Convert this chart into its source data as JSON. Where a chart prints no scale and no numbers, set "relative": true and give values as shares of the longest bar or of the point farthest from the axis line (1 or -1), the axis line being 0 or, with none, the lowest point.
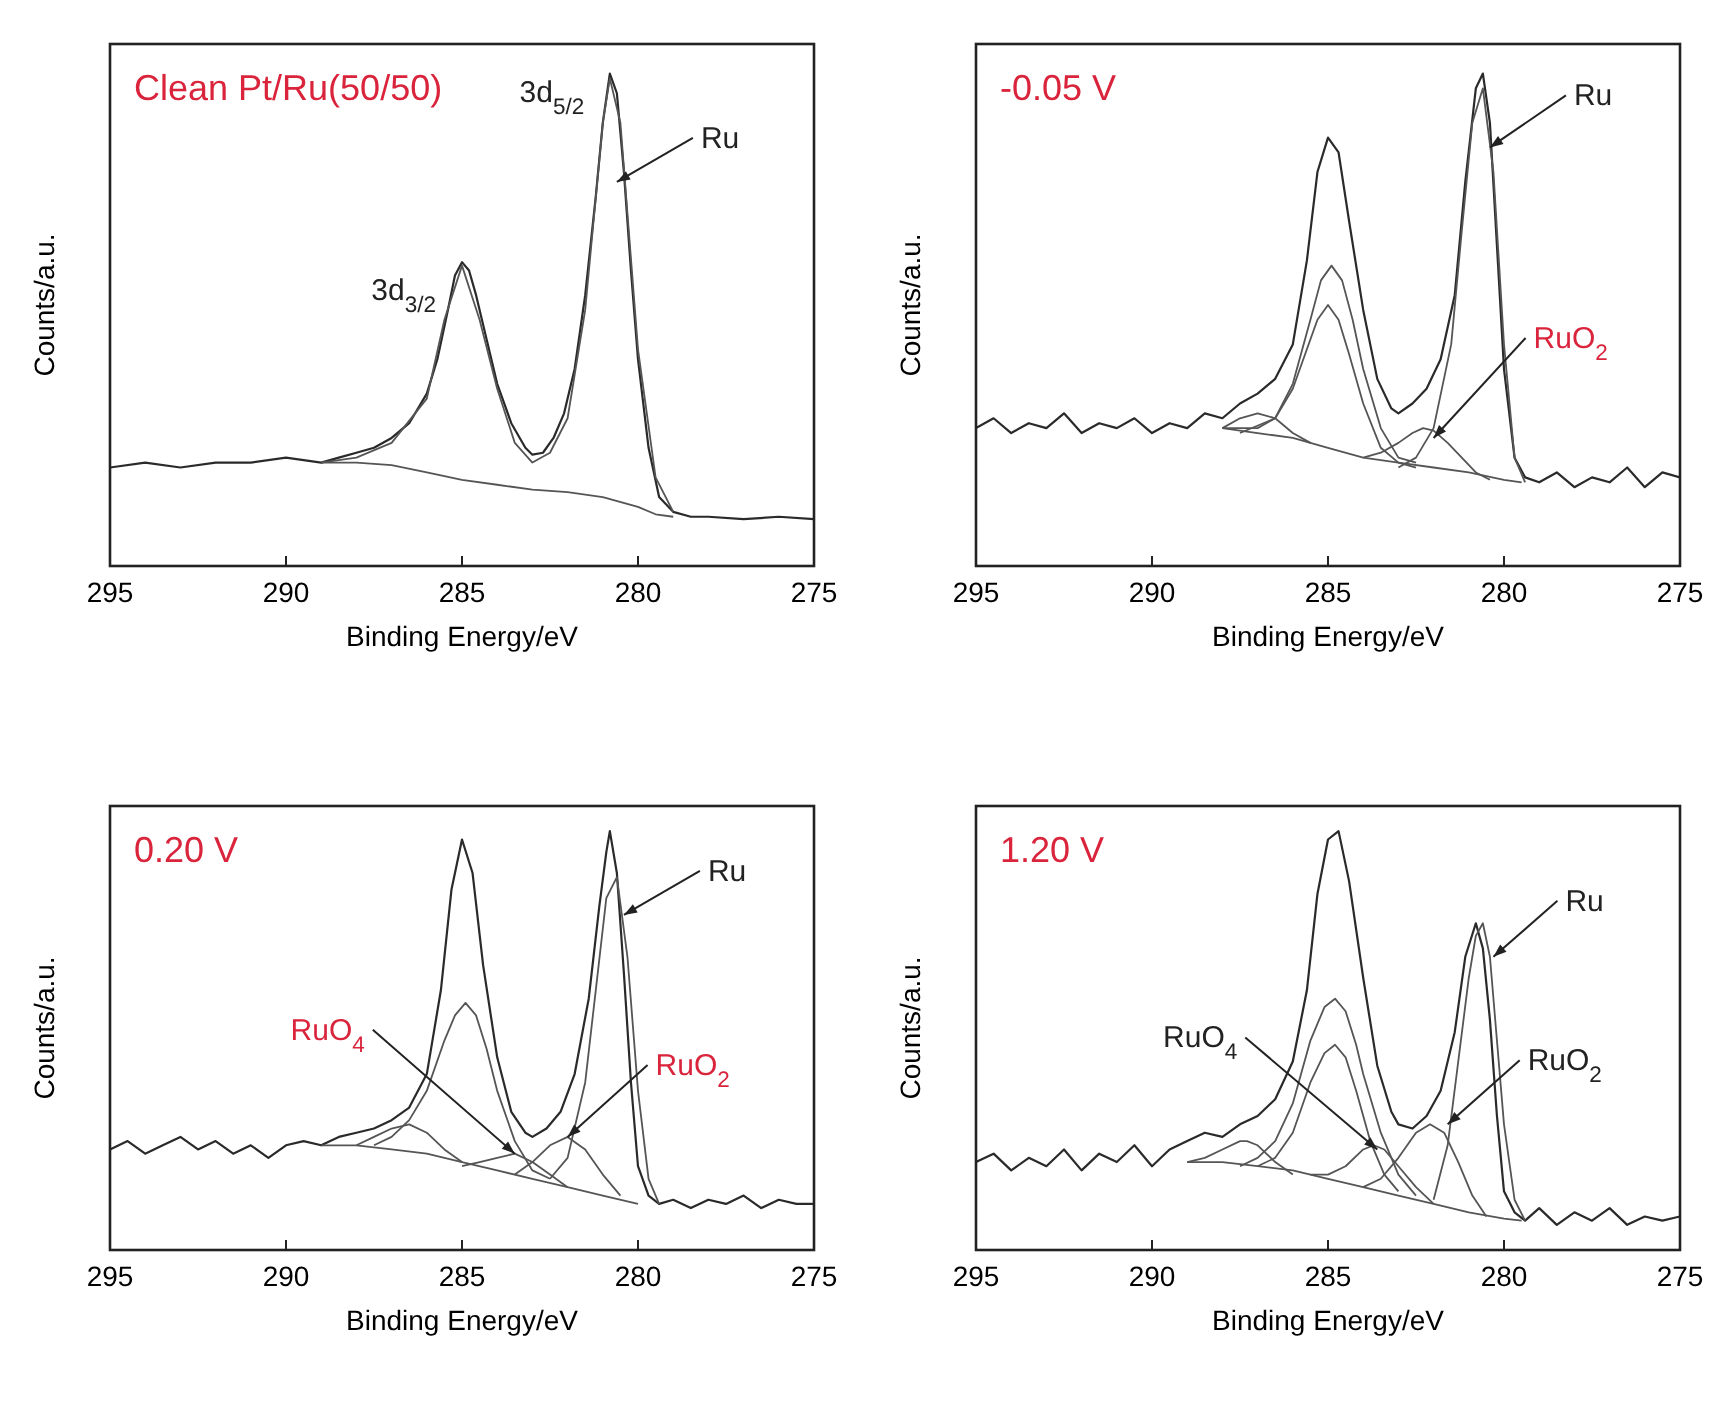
{
  "chart_data": [
    {
      "type": "line",
      "title": "Clean Pt/Ru(50/50)",
      "xlabel": "Binding Energy/eV",
      "ylabel": "Counts/a.u.",
      "relative": true,
      "xlim": [
        295,
        275
      ],
      "xticks": [
        295,
        290,
        285,
        280,
        275
      ],
      "tick_labels": "x",
      "grid": false,
      "marker": "none",
      "line_style": "solid",
      "annotations": [
        {
          "text": "3d$_{5/2}$",
          "x": 281.3,
          "y": 0.8
        },
        {
          "text": "3d$_{3/2}$",
          "x": 285.4,
          "y": 0.52
        },
        {
          "text": "Ru",
          "x": 280.6,
          "y": 0.78
        }
      ],
      "series": [
        {
          "color": "#2a2a2a",
          "x": [
            295,
            294,
            293,
            292,
            291,
            290,
            289,
            288.5,
            288,
            287.5,
            287,
            286.5,
            286,
            285.7,
            285.4,
            285.2,
            285,
            284.8,
            284.6,
            284.3,
            284,
            283.6,
            283.2,
            283,
            282.7,
            282.4,
            282.1,
            281.8,
            281.5,
            281.2,
            281,
            280.8,
            280.6,
            280.4,
            280.2,
            280,
            279.7,
            279.4,
            279,
            278.5,
            278,
            277,
            276,
            275
          ],
          "values": [
            0.2,
            0.21,
            0.2,
            0.21,
            0.21,
            0.22,
            0.21,
            0.22,
            0.23,
            0.24,
            0.26,
            0.29,
            0.35,
            0.42,
            0.52,
            0.59,
            0.617,
            0.6,
            0.55,
            0.46,
            0.37,
            0.29,
            0.24,
            0.226,
            0.23,
            0.26,
            0.31,
            0.4,
            0.55,
            0.75,
            0.9,
            1.0,
            0.96,
            0.8,
            0.6,
            0.42,
            0.24,
            0.14,
            0.11,
            0.1,
            0.1,
            0.095,
            0.1,
            0.095
          ]
        },
        {
          "color": "#555555",
          "x": [
            289,
            288,
            287,
            286,
            285.5,
            285,
            284.5,
            284,
            283.5,
            283,
            282.5,
            282,
            281.5,
            281,
            280.8,
            280.5,
            280,
            279.5,
            279
          ],
          "values": [
            0.21,
            0.22,
            0.25,
            0.34,
            0.5,
            0.61,
            0.5,
            0.36,
            0.25,
            0.21,
            0.23,
            0.3,
            0.52,
            0.9,
            0.99,
            0.9,
            0.44,
            0.18,
            0.11
          ]
        },
        {
          "color": "#555555",
          "x": [
            289,
            288,
            287,
            286,
            285,
            284,
            283,
            282,
            281,
            280,
            279.5,
            279
          ],
          "values": [
            0.21,
            0.21,
            0.205,
            0.19,
            0.175,
            0.165,
            0.155,
            0.15,
            0.14,
            0.12,
            0.105,
            0.1
          ]
        }
      ]
    },
    {
      "type": "line",
      "title": "-0.05 V",
      "xlabel": "Binding Energy/eV",
      "ylabel": "Counts/a.u.",
      "relative": true,
      "xlim": [
        295,
        275
      ],
      "xticks": [
        295,
        290,
        285,
        280,
        275
      ],
      "tick_labels": "x",
      "grid": false,
      "marker": "none",
      "line_style": "solid",
      "annotations": [
        {
          "text": "Ru",
          "x": 280.4,
          "y": 0.85
        },
        {
          "text": "RuO$_{2}$",
          "x": 282,
          "y": 0.26
        }
      ],
      "series": [
        {
          "color": "#2a2a2a",
          "x": [
            295,
            294.5,
            294,
            293.5,
            293,
            292.5,
            292,
            291.5,
            291,
            290.5,
            290,
            289.5,
            289,
            288.5,
            288,
            287.5,
            287,
            286.5,
            286,
            285.6,
            285.3,
            285,
            284.7,
            284.4,
            284,
            283.6,
            283.2,
            283,
            282.6,
            282.2,
            281.8,
            281.4,
            281.1,
            280.8,
            280.6,
            280.4,
            280.2,
            280,
            279.7,
            279.4,
            279,
            278.5,
            278,
            277.5,
            277,
            276.5,
            276,
            275.5,
            275
          ],
          "values": [
            0.28,
            0.3,
            0.27,
            0.29,
            0.28,
            0.31,
            0.27,
            0.29,
            0.28,
            0.3,
            0.27,
            0.29,
            0.28,
            0.31,
            0.3,
            0.33,
            0.35,
            0.38,
            0.45,
            0.62,
            0.8,
            0.87,
            0.84,
            0.7,
            0.52,
            0.38,
            0.32,
            0.31,
            0.33,
            0.36,
            0.42,
            0.55,
            0.78,
            0.97,
            1.0,
            0.9,
            0.65,
            0.4,
            0.22,
            0.18,
            0.17,
            0.19,
            0.16,
            0.18,
            0.17,
            0.2,
            0.16,
            0.19,
            0.18
          ]
        },
        {
          "color": "#555555",
          "x": [
            288,
            287,
            286,
            285,
            284,
            283,
            282,
            281,
            280,
            279.5
          ],
          "values": [
            0.28,
            0.27,
            0.26,
            0.24,
            0.22,
            0.21,
            0.2,
            0.19,
            0.175,
            0.17
          ]
        },
        {
          "color": "#555555",
          "x": [
            287.5,
            286.5,
            286,
            285.5,
            285.2,
            284.9,
            284.6,
            284.3,
            284,
            283.5,
            283,
            282.5
          ],
          "values": [
            0.27,
            0.3,
            0.37,
            0.5,
            0.58,
            0.61,
            0.58,
            0.5,
            0.4,
            0.28,
            0.22,
            0.21
          ]
        },
        {
          "color": "#555555",
          "x": [
            288,
            287,
            286.5,
            286,
            285.6,
            285.3,
            285,
            284.7,
            284.4,
            284,
            283.5,
            283,
            282.5
          ],
          "values": [
            0.28,
            0.28,
            0.3,
            0.36,
            0.44,
            0.5,
            0.53,
            0.5,
            0.43,
            0.33,
            0.24,
            0.21,
            0.2
          ]
        },
        {
          "color": "#555555",
          "x": [
            288,
            287.5,
            287,
            286.5,
            286,
            285.5
          ],
          "values": [
            0.28,
            0.3,
            0.31,
            0.3,
            0.27,
            0.25
          ]
        },
        {
          "color": "#555555",
          "x": [
            284,
            283.5,
            283,
            282.6,
            282.3,
            282,
            281.6,
            281.2,
            280.8,
            280.4
          ],
          "values": [
            0.22,
            0.23,
            0.25,
            0.27,
            0.28,
            0.275,
            0.25,
            0.22,
            0.19,
            0.175
          ]
        },
        {
          "color": "#555555",
          "x": [
            283,
            282.5,
            282,
            281.5,
            281.2,
            280.9,
            280.6,
            280.3,
            280,
            279.7,
            279.4
          ],
          "values": [
            0.2,
            0.22,
            0.28,
            0.45,
            0.68,
            0.9,
            0.97,
            0.8,
            0.45,
            0.22,
            0.17
          ]
        }
      ]
    },
    {
      "type": "line",
      "title": "0.20 V",
      "xlabel": "Binding Energy/eV",
      "ylabel": "Counts/a.u.",
      "relative": true,
      "xlim": [
        295,
        275
      ],
      "xticks": [
        295,
        290,
        285,
        280,
        275
      ],
      "tick_labels": "x",
      "grid": false,
      "marker": "none",
      "line_style": "solid",
      "annotations": [
        {
          "text": "Ru",
          "x": 280.4,
          "y": 0.8
        },
        {
          "text": "RuO$_{4}$",
          "x": 283.5,
          "y": 0.23
        },
        {
          "text": "RuO$_{2}$",
          "x": 282,
          "y": 0.27
        }
      ],
      "series": [
        {
          "color": "#2a2a2a",
          "x": [
            295,
            294.5,
            294,
            293.5,
            293,
            292.5,
            292,
            291.5,
            291,
            290.5,
            290,
            289.5,
            289,
            288.5,
            288,
            287.5,
            287,
            286.5,
            286,
            285.6,
            285.3,
            285,
            284.7,
            284.4,
            284,
            283.6,
            283.2,
            283,
            282.6,
            282.2,
            281.8,
            281.4,
            281.1,
            280.9,
            280.8,
            280.6,
            280.4,
            280.2,
            280,
            279.7,
            279.4,
            279,
            278.5,
            278,
            277.5,
            277,
            276.5,
            276,
            275.5,
            275
          ],
          "values": [
            0.24,
            0.26,
            0.23,
            0.25,
            0.27,
            0.24,
            0.26,
            0.23,
            0.25,
            0.22,
            0.25,
            0.26,
            0.25,
            0.27,
            0.28,
            0.29,
            0.31,
            0.34,
            0.42,
            0.62,
            0.86,
            0.98,
            0.9,
            0.68,
            0.46,
            0.33,
            0.28,
            0.27,
            0.29,
            0.33,
            0.42,
            0.6,
            0.82,
            0.95,
            1.0,
            0.9,
            0.66,
            0.4,
            0.2,
            0.13,
            0.11,
            0.12,
            0.1,
            0.12,
            0.11,
            0.13,
            0.1,
            0.12,
            0.11,
            0.11
          ]
        },
        {
          "color": "#555555",
          "x": [
            289,
            288,
            287,
            286,
            285,
            284,
            283,
            282,
            281,
            280
          ],
          "values": [
            0.25,
            0.25,
            0.24,
            0.23,
            0.21,
            0.19,
            0.17,
            0.15,
            0.13,
            0.11
          ]
        },
        {
          "color": "#555555",
          "x": [
            287.5,
            287,
            286.5,
            286,
            285.5,
            285.2,
            284.9,
            284.6,
            284.3,
            284,
            283.5,
            283,
            282.5
          ],
          "values": [
            0.25,
            0.27,
            0.31,
            0.38,
            0.5,
            0.56,
            0.59,
            0.56,
            0.48,
            0.38,
            0.26,
            0.19,
            0.17
          ]
        },
        {
          "color": "#555555",
          "x": [
            288,
            287.5,
            287,
            286.5,
            286,
            285.5,
            285
          ],
          "values": [
            0.25,
            0.27,
            0.29,
            0.3,
            0.28,
            0.24,
            0.21
          ]
        },
        {
          "color": "#555555",
          "x": [
            285,
            284.5,
            284,
            283.5,
            283,
            282.5,
            282
          ],
          "values": [
            0.2,
            0.21,
            0.22,
            0.23,
            0.21,
            0.18,
            0.15
          ]
        },
        {
          "color": "#555555",
          "x": [
            283.5,
            283,
            282.5,
            282,
            281.5,
            281,
            280.5
          ],
          "values": [
            0.18,
            0.21,
            0.25,
            0.27,
            0.24,
            0.18,
            0.13
          ]
        },
        {
          "color": "#555555",
          "x": [
            282.5,
            282,
            281.5,
            281.2,
            280.9,
            280.6,
            280.3,
            280,
            279.7,
            279.4
          ],
          "values": [
            0.17,
            0.22,
            0.4,
            0.62,
            0.84,
            0.89,
            0.7,
            0.38,
            0.17,
            0.11
          ]
        }
      ]
    },
    {
      "type": "line",
      "title": "1.20 V",
      "xlabel": "Binding Energy/eV",
      "ylabel": "Counts/a.u.",
      "relative": true,
      "xlim": [
        295,
        275
      ],
      "xticks": [
        295,
        290,
        285,
        280,
        275
      ],
      "tick_labels": "x",
      "grid": false,
      "marker": "none",
      "line_style": "solid",
      "annotations": [
        {
          "text": "Ru",
          "x": 280.3,
          "y": 0.7
        },
        {
          "text": "RuO$_{4}$",
          "x": 283.6,
          "y": 0.24
        },
        {
          "text": "RuO$_{2}$",
          "x": 281.6,
          "y": 0.3
        }
      ],
      "series": [
        {
          "color": "#2a2a2a",
          "x": [
            295,
            294.5,
            294,
            293.5,
            293,
            292.5,
            292,
            291.5,
            291,
            290.5,
            290,
            289.5,
            289,
            288.5,
            288,
            287.5,
            287,
            286.5,
            286,
            285.6,
            285.3,
            285,
            284.7,
            284.4,
            284,
            283.6,
            283.2,
            283,
            282.6,
            282.2,
            281.8,
            281.4,
            281.1,
            280.8,
            280.6,
            280.4,
            280.2,
            280,
            279.7,
            279.4,
            279,
            278.5,
            278,
            277.5,
            277,
            276.5,
            276,
            275.5,
            275
          ],
          "values": [
            0.21,
            0.23,
            0.19,
            0.22,
            0.2,
            0.24,
            0.19,
            0.23,
            0.21,
            0.25,
            0.2,
            0.24,
            0.26,
            0.28,
            0.27,
            0.3,
            0.32,
            0.36,
            0.45,
            0.62,
            0.85,
            0.98,
            1.0,
            0.88,
            0.65,
            0.44,
            0.33,
            0.3,
            0.29,
            0.32,
            0.38,
            0.52,
            0.7,
            0.78,
            0.72,
            0.55,
            0.32,
            0.14,
            0.09,
            0.07,
            0.1,
            0.06,
            0.09,
            0.07,
            0.1,
            0.06,
            0.08,
            0.07,
            0.08
          ]
        },
        {
          "color": "#555555",
          "x": [
            289,
            288,
            287,
            286,
            285,
            284,
            283,
            282,
            281,
            280,
            279.5
          ],
          "values": [
            0.21,
            0.21,
            0.2,
            0.19,
            0.17,
            0.15,
            0.13,
            0.11,
            0.09,
            0.075,
            0.07
          ]
        },
        {
          "color": "#555555",
          "x": [
            287.5,
            287,
            286.5,
            286,
            285.5,
            285.1,
            284.8,
            284.5,
            284.2,
            284,
            283.5,
            283,
            282.5
          ],
          "values": [
            0.2,
            0.22,
            0.26,
            0.35,
            0.5,
            0.58,
            0.6,
            0.57,
            0.49,
            0.42,
            0.28,
            0.18,
            0.13
          ]
        },
        {
          "color": "#555555",
          "x": [
            287,
            286.5,
            286,
            285.5,
            285.1,
            284.8,
            284.5,
            284.2,
            283.8,
            283.4,
            283
          ],
          "values": [
            0.2,
            0.22,
            0.28,
            0.4,
            0.47,
            0.49,
            0.46,
            0.38,
            0.26,
            0.18,
            0.14
          ]
        },
        {
          "color": "#555555",
          "x": [
            289,
            288.5,
            288,
            287.5,
            287.3,
            287,
            286.5,
            286
          ],
          "values": [
            0.21,
            0.22,
            0.24,
            0.26,
            0.26,
            0.25,
            0.21,
            0.18
          ]
        },
        {
          "color": "#555555",
          "x": [
            285.5,
            285,
            284.5,
            284,
            283.7,
            283.4,
            283,
            282.5,
            282
          ],
          "values": [
            0.18,
            0.18,
            0.2,
            0.24,
            0.25,
            0.24,
            0.2,
            0.15,
            0.11
          ]
        },
        {
          "color": "#555555",
          "x": [
            284,
            283.5,
            283,
            282.5,
            282.1,
            281.7,
            281.3,
            280.9,
            280.5
          ],
          "values": [
            0.15,
            0.17,
            0.22,
            0.28,
            0.3,
            0.28,
            0.21,
            0.13,
            0.08
          ]
        },
        {
          "color": "#555555",
          "x": [
            282,
            281.6,
            281.3,
            281,
            280.8,
            280.6,
            280.4,
            280.2,
            280,
            279.7,
            279.4
          ],
          "values": [
            0.12,
            0.25,
            0.45,
            0.65,
            0.75,
            0.78,
            0.7,
            0.5,
            0.3,
            0.12,
            0.07
          ]
        }
      ]
    }
  ]
}
